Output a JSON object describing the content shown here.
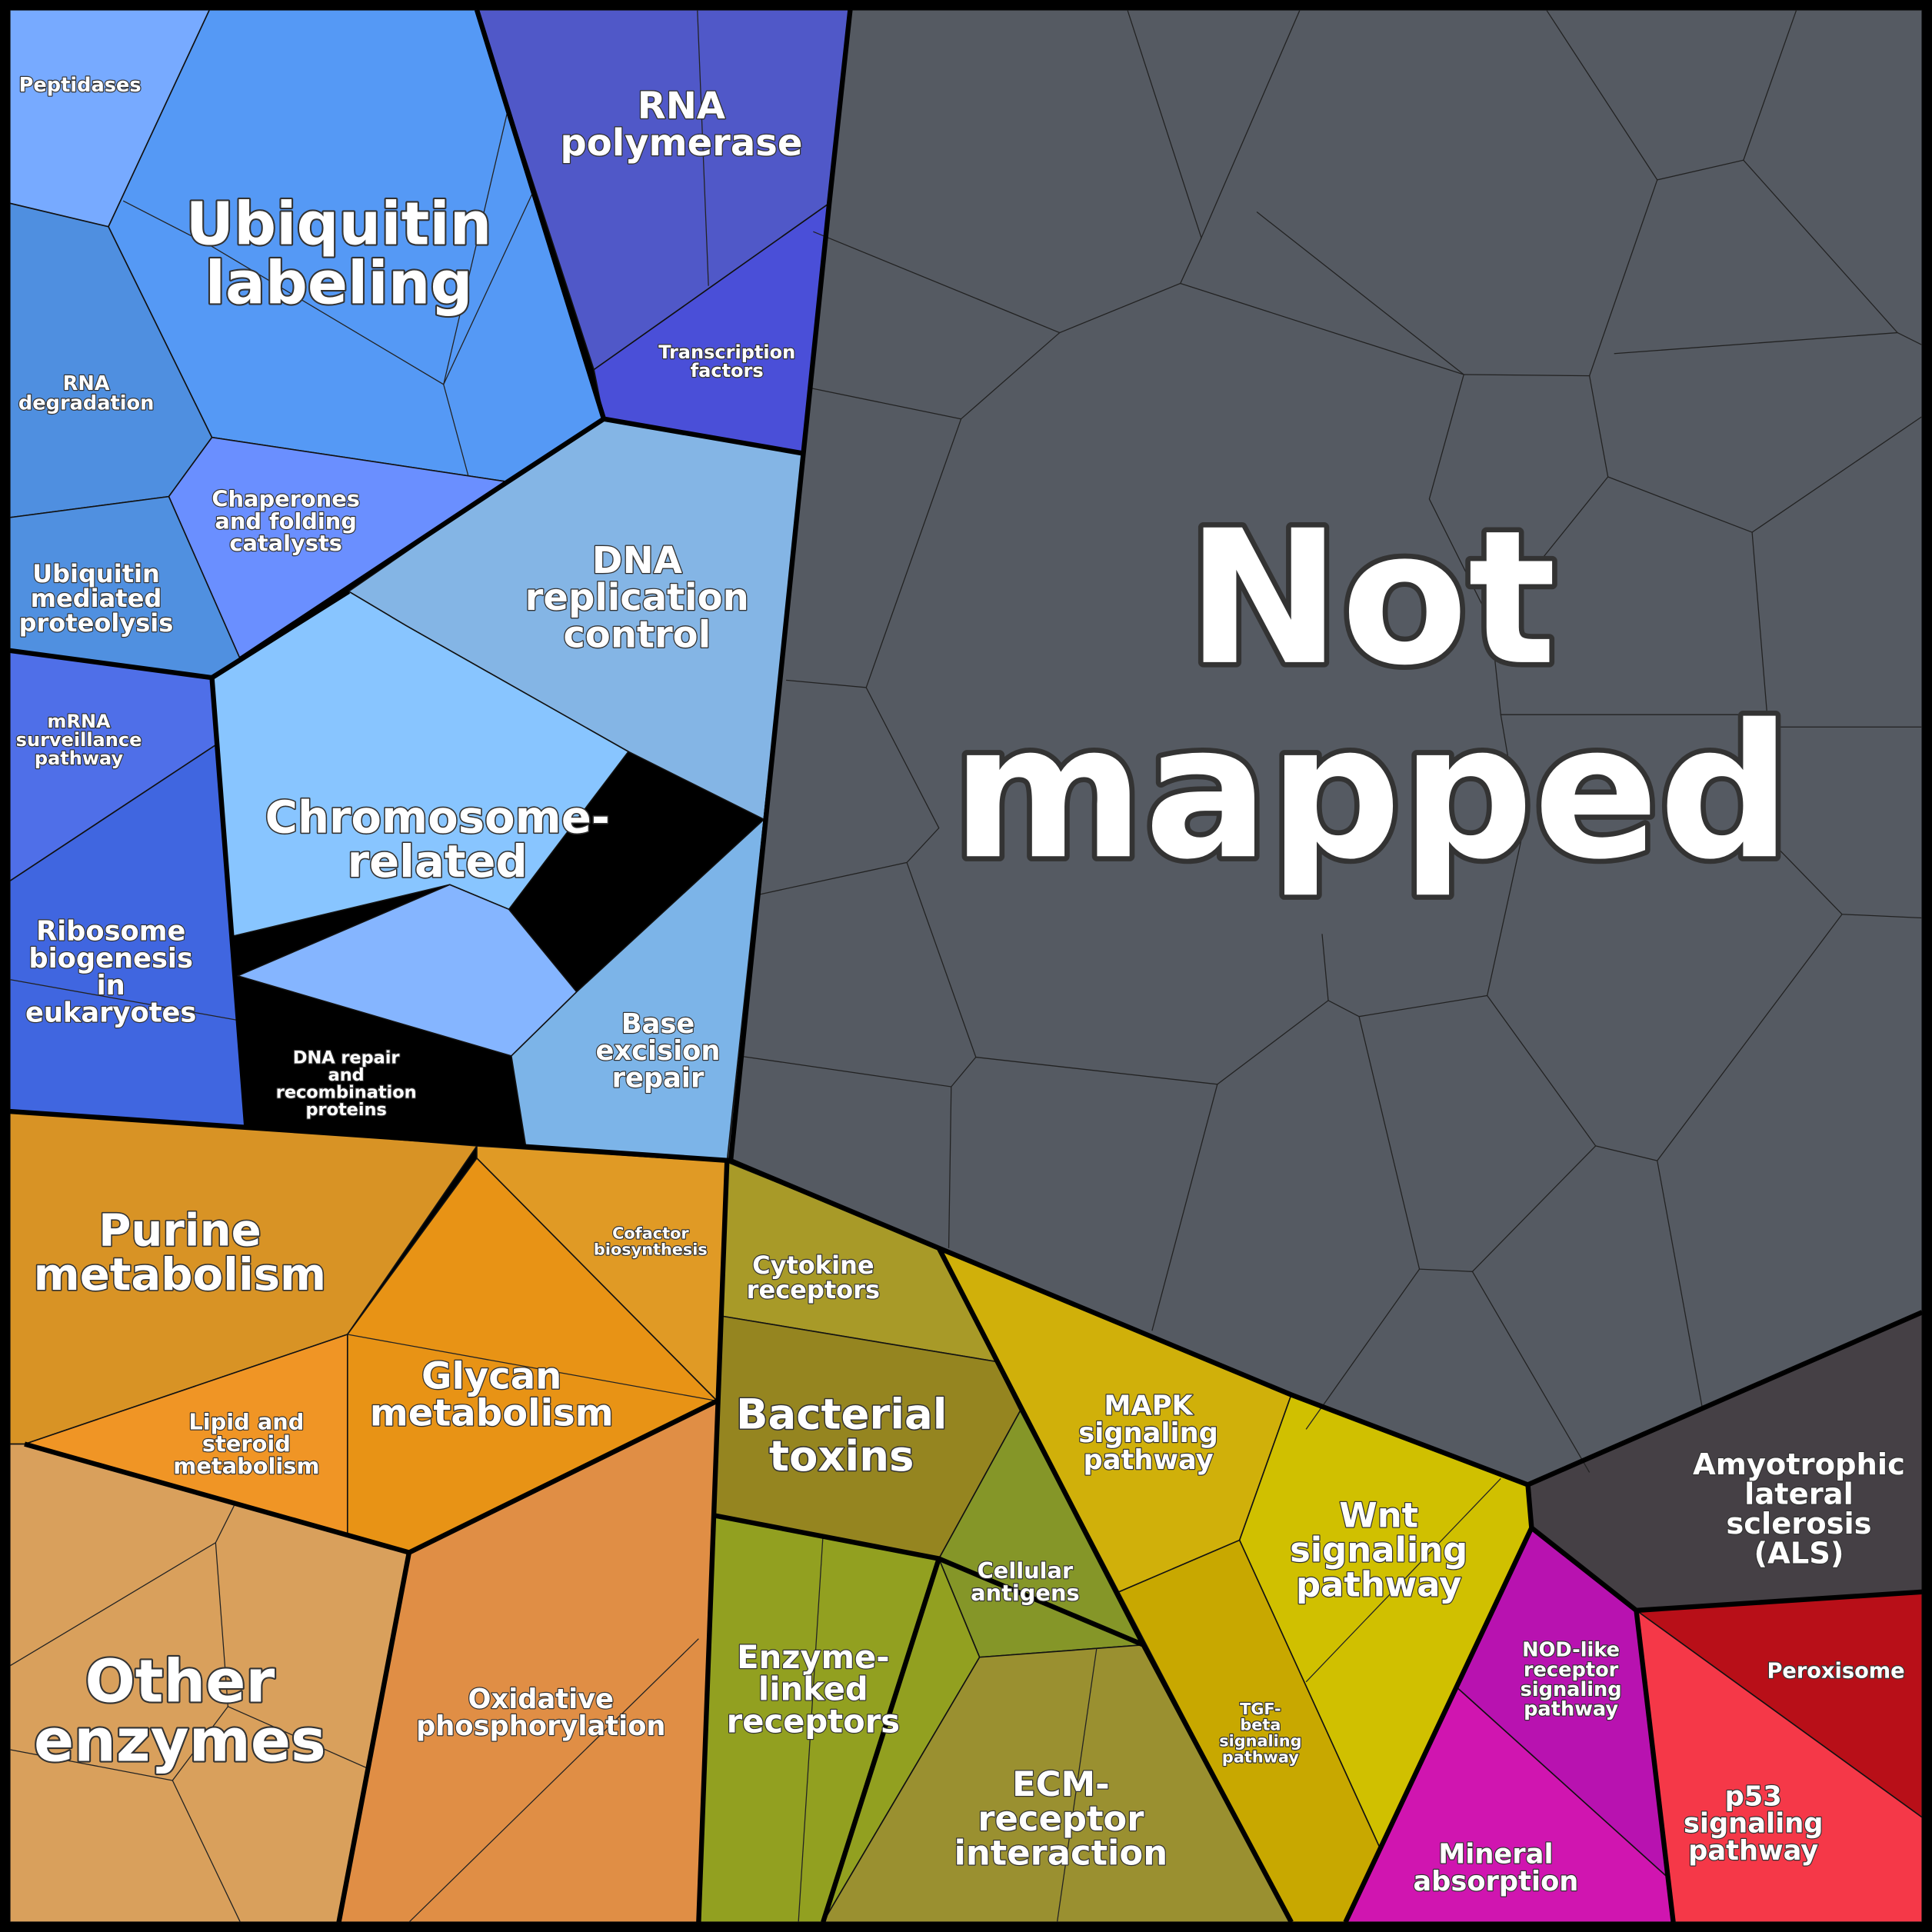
{
  "cells": [
    {
      "label": [
        "Peptidases"
      ]
    },
    {
      "label": [
        "Ubiquitin",
        "labeling"
      ]
    },
    {
      "label": [
        "RNA",
        "degradation"
      ]
    },
    {
      "label": [
        "Chaperones",
        "and folding",
        "catalysts"
      ]
    },
    {
      "label": [
        "Ubiquitin",
        "mediated",
        "proteolysis"
      ]
    },
    {
      "label": [
        "RNA",
        "polymerase"
      ]
    },
    {
      "label": [
        "Transcription",
        "factors"
      ]
    },
    {
      "label": [
        "DNA",
        "replication",
        "control"
      ]
    },
    {
      "label": [
        "Chromosome-",
        "related"
      ]
    },
    {
      "label": [
        "DNA repair",
        "and",
        "recombination",
        "proteins"
      ]
    },
    {
      "label": [
        "Base",
        "excision",
        "repair"
      ]
    },
    {
      "label": [
        "mRNA",
        "surveillance",
        "pathway"
      ]
    },
    {
      "label": [
        "Ribosome",
        "biogenesis",
        "in",
        "eukaryotes"
      ]
    },
    {
      "label": [
        "Purine",
        "metabolism"
      ]
    },
    {
      "label": [
        "Cofactor",
        "biosynthesis"
      ]
    },
    {
      "label": [
        "Glycan",
        "metabolism"
      ]
    },
    {
      "label": [
        "Lipid and",
        "steroid",
        "metabolism"
      ]
    },
    {
      "label": [
        "Other",
        "enzymes"
      ]
    },
    {
      "label": [
        "Oxidative",
        "phosphorylation"
      ]
    },
    {
      "label": [
        "Cytokine",
        "receptors"
      ]
    },
    {
      "label": [
        "Bacterial",
        "toxins"
      ]
    },
    {
      "label": [
        "Cellular",
        "antigens"
      ]
    },
    {
      "label": [
        "Enzyme-",
        "linked",
        "receptors"
      ]
    },
    {
      "label": [
        "ECM-",
        "receptor",
        "interaction"
      ]
    },
    {
      "label": [
        "MAPK",
        "signaling",
        "pathway"
      ]
    },
    {
      "label": [
        "Wnt",
        "signaling",
        "pathway"
      ]
    },
    {
      "label": [
        "TGF-",
        "beta",
        "signaling",
        "pathway"
      ]
    },
    {
      "label": [
        "Mineral",
        "absorption"
      ]
    },
    {
      "label": [
        "NOD-like",
        "receptor",
        "signaling",
        "pathway"
      ]
    },
    {
      "label": [
        "Peroxisome"
      ]
    },
    {
      "label": [
        "p53",
        "signaling",
        "pathway"
      ]
    },
    {
      "label": [
        "Amyotrophic",
        "lateral",
        "sclerosis",
        "(ALS)"
      ]
    },
    {
      "label": [
        "Not",
        "mapped"
      ]
    }
  ]
}
